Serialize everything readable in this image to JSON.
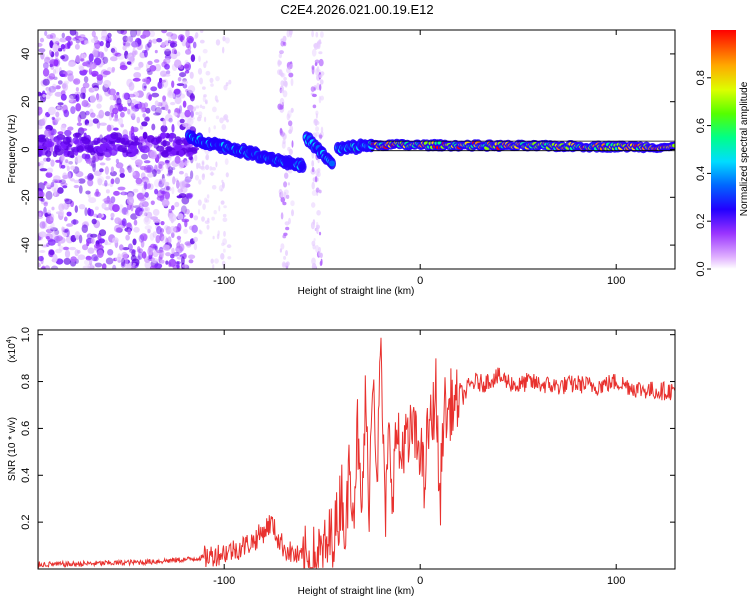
{
  "title": "C2E4.2026.021.00.19.E12",
  "chart_data": [
    {
      "type": "heatmap",
      "name": "spectrogram",
      "xlabel": "Height of straight line (km)",
      "ylabel": "Frequency (Hz)",
      "xlim": [
        -195,
        130
      ],
      "ylim": [
        -50,
        50
      ],
      "xticks": [
        -100,
        0,
        100
      ],
      "xtick_labels": [
        "-100",
        "0",
        "100"
      ],
      "yticks": [
        -40,
        -20,
        0,
        20,
        40
      ],
      "ytick_labels": [
        "-40",
        "-20",
        "0",
        "20",
        "40"
      ],
      "colorbar": {
        "label": "Normalized spectral amplitude",
        "range": [
          0,
          1
        ],
        "ticks": [
          0.0,
          0.2,
          0.4,
          0.6,
          0.8
        ],
        "tick_labels": [
          "0.0",
          "0.2",
          "0.4",
          "0.6",
          "0.8"
        ],
        "colors": [
          "#ffffff",
          "#cc66ff",
          "#6600ff",
          "#0000ff",
          "#00ccff",
          "#00ff88",
          "#66ff00",
          "#ffff00",
          "#ff8800",
          "#ff0000"
        ]
      },
      "ridge": {
        "segments": [
          {
            "x_start": -118,
            "x_end": -60,
            "f_start": 5,
            "f_end": -7,
            "amplitude": 0.45
          },
          {
            "x_start": -58,
            "x_end": -45,
            "f_start": 5,
            "f_end": -6,
            "amplitude": 0.5
          },
          {
            "x_start": -42,
            "x_end": -25,
            "f_start": 0,
            "f_end": 2,
            "amplitude": 0.55
          },
          {
            "x_start": -25,
            "x_end": 130,
            "f_start": 2,
            "f_end": 1,
            "amplitude": 0.95
          }
        ],
        "noise_region_x": [
          -195,
          -115
        ],
        "noise_strips_x": [
          [
            -72,
            -65
          ],
          [
            -55,
            -50
          ]
        ]
      }
    },
    {
      "type": "line",
      "name": "snr",
      "xlabel": "Height of straight line (km)",
      "ylabel": "SNR (10 * v/v)",
      "yscale_label": "(x10",
      "yscale_exponent": "4",
      "yscale_suffix": ")",
      "xlim": [
        -195,
        130
      ],
      "ylim": [
        0,
        1.02
      ],
      "xticks": [
        -100,
        0,
        100
      ],
      "xtick_labels": [
        "-100",
        "0",
        "100"
      ],
      "yticks": [
        0.2,
        0.4,
        0.6,
        0.8,
        1.0
      ],
      "ytick_labels": [
        "0.2",
        "0.4",
        "0.6",
        "0.8",
        "1.0"
      ],
      "series": [
        {
          "name": "SNR",
          "color": "#e8312e",
          "x": [
            -195,
            -180,
            -160,
            -140,
            -120,
            -110,
            -100,
            -92,
            -85,
            -80,
            -76,
            -72,
            -68,
            -64,
            -60,
            -56,
            -52,
            -48,
            -45,
            -42,
            -40,
            -38,
            -36,
            -34,
            -32,
            -30,
            -28,
            -26,
            -24,
            -22,
            -20,
            -18,
            -16,
            -14,
            -12,
            -10,
            -8,
            -6,
            -4,
            -2,
            0,
            2,
            4,
            6,
            8,
            10,
            12,
            14,
            16,
            18,
            20,
            22,
            25,
            28,
            32,
            36,
            40,
            45,
            50,
            55,
            60,
            70,
            80,
            90,
            100,
            110,
            120,
            130
          ],
          "values": [
            0.02,
            0.02,
            0.025,
            0.03,
            0.04,
            0.05,
            0.07,
            0.09,
            0.12,
            0.16,
            0.2,
            0.12,
            0.08,
            0.06,
            0.04,
            0.03,
            0.05,
            0.08,
            0.15,
            0.2,
            0.35,
            0.12,
            0.5,
            0.25,
            0.6,
            0.2,
            0.7,
            0.3,
            0.9,
            0.4,
            0.95,
            0.2,
            0.55,
            0.35,
            0.6,
            0.45,
            0.58,
            0.5,
            0.62,
            0.52,
            0.55,
            0.35,
            0.6,
            0.62,
            0.78,
            0.25,
            0.7,
            0.65,
            0.72,
            0.68,
            0.76,
            0.74,
            0.78,
            0.8,
            0.79,
            0.81,
            0.82,
            0.8,
            0.78,
            0.8,
            0.79,
            0.78,
            0.79,
            0.78,
            0.8,
            0.77,
            0.76,
            0.76
          ]
        }
      ]
    }
  ]
}
